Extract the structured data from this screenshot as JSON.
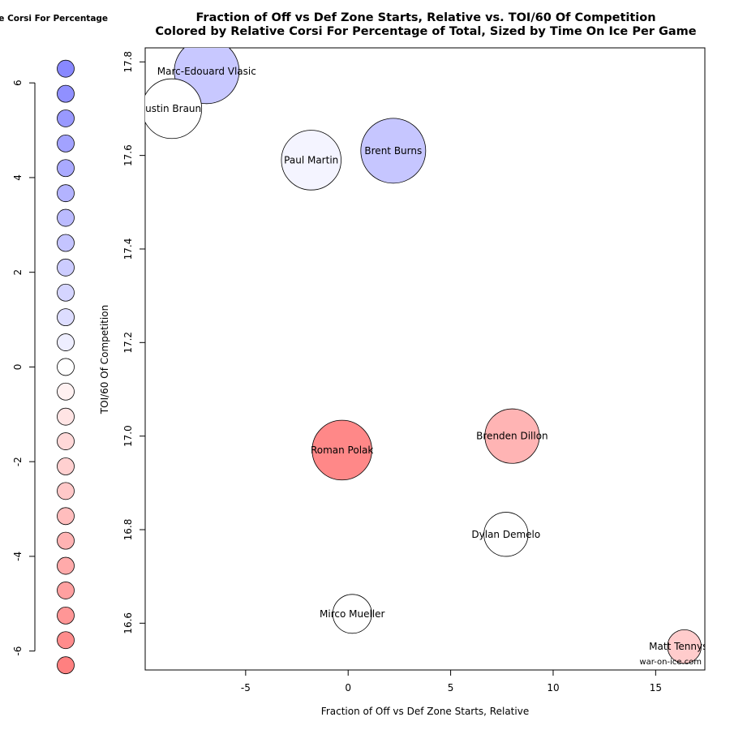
{
  "title": {
    "line1": "Fraction of Off vs Def Zone Starts, Relative vs. TOI/60 Of Competition",
    "line2": "Colored by Relative Corsi For Percentage of Total, Sized by Time On Ice Per Game"
  },
  "source_label": "war-on-ice.com",
  "chart_data": [
    {
      "type": "scatter",
      "title": "Fraction of Off vs Def Zone Starts, Relative vs. TOI/60 Of Competition",
      "subtitle": "Colored by Relative Corsi For Percentage of Total, Sized by Time On Ice Per Game",
      "xlabel": "Fraction of Off vs Def Zone Starts, Relative",
      "ylabel": "TOI/60 Of Competition",
      "xlim": [
        -9.9,
        17.4
      ],
      "ylim": [
        16.5,
        17.83
      ],
      "xticks": [
        -5,
        0,
        5,
        10,
        15
      ],
      "yticks": [
        16.6,
        16.8,
        17.0,
        17.2,
        17.4,
        17.6,
        17.8
      ],
      "xtick_labels": [
        "-5",
        "0",
        "5",
        "10",
        "15"
      ],
      "ytick_labels": [
        "16.6",
        "16.8",
        "17.0",
        "17.2",
        "17.4",
        "17.6",
        "17.8"
      ],
      "grid": false,
      "points": [
        {
          "label": "Marc-Edouard Vlasic",
          "x": -6.9,
          "y": 17.78,
          "color": "#c8c8ff",
          "size_rank": 10
        },
        {
          "label": "Justin Braun",
          "x": -8.6,
          "y": 17.7,
          "color": "#ffffff",
          "size_rank": 9
        },
        {
          "label": "Paul Martin",
          "x": -1.8,
          "y": 17.59,
          "color": "#f4f4ff",
          "size_rank": 9
        },
        {
          "label": "Brent Burns",
          "x": 2.2,
          "y": 17.61,
          "color": "#c6c6ff",
          "size_rank": 10
        },
        {
          "label": "Roman Polak",
          "x": -0.3,
          "y": 16.97,
          "color": "#ff8888",
          "size_rank": 9
        },
        {
          "label": "Brenden Dillon",
          "x": 8.0,
          "y": 17.0,
          "color": "#ffb4b4",
          "size_rank": 8
        },
        {
          "label": "Dylan Demelo",
          "x": 7.7,
          "y": 16.79,
          "color": "#ffffff",
          "size_rank": 6
        },
        {
          "label": "Mirco Mueller",
          "x": 0.2,
          "y": 16.62,
          "color": "#ffffff",
          "size_rank": 5
        },
        {
          "label": "Matt Tennyson",
          "x": 16.4,
          "y": 16.55,
          "color": "#ffcccc",
          "size_rank": 4
        }
      ]
    },
    {
      "type": "scatter",
      "title": "Relative Corsi For Percentage",
      "ylim": [
        -6.4,
        6.5
      ],
      "yticks": [
        -6,
        -4,
        -2,
        0,
        2,
        4,
        6
      ],
      "ytick_labels": [
        "-6",
        "-4",
        "-2",
        "0",
        "2",
        "4",
        "6"
      ],
      "legend_values": [
        6.3,
        5.77,
        5.25,
        4.72,
        4.2,
        3.67,
        3.15,
        2.62,
        2.1,
        1.57,
        1.05,
        0.52,
        0.0,
        -0.52,
        -1.05,
        -1.57,
        -2.1,
        -2.62,
        -3.15,
        -3.67,
        -4.2,
        -4.72,
        -5.25,
        -5.77,
        -6.3
      ],
      "legend_colors": [
        "#8888ff",
        "#9090ff",
        "#9999ff",
        "#a2a2ff",
        "#aaaaff",
        "#b3b3ff",
        "#bbbbff",
        "#c4c4ff",
        "#ccccff",
        "#d5d5ff",
        "#ddddff",
        "#eeeeff",
        "#ffffff",
        "#fff1f1",
        "#ffe4e4",
        "#ffd8d8",
        "#ffd0d0",
        "#ffc8c8",
        "#ffbdbd",
        "#ffb3b3",
        "#ffaaaa",
        "#ffa0a0",
        "#ff9696",
        "#ff8c8c",
        "#ff8080"
      ]
    }
  ]
}
